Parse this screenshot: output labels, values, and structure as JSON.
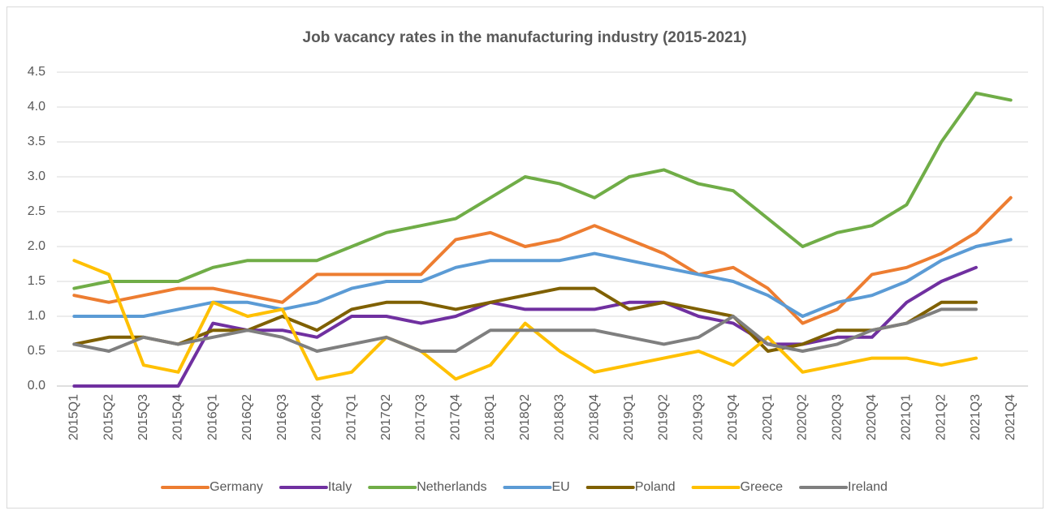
{
  "chart_data": {
    "type": "line",
    "title": "Job vacancy rates in the manufacturing industry (2015-2021)",
    "categories": [
      "2015Q1",
      "2015Q2",
      "2015Q3",
      "2015Q4",
      "2016Q1",
      "2016Q2",
      "2016Q3",
      "2016Q4",
      "2017Q1",
      "2017Q2",
      "2017Q3",
      "2017Q4",
      "2018Q1",
      "2018Q2",
      "2018Q3",
      "2018Q4",
      "2019Q1",
      "2019Q2",
      "2019Q3",
      "2019Q4",
      "2020Q1",
      "2020Q2",
      "2020Q3",
      "2020Q4",
      "2021Q1",
      "2021Q2",
      "2021Q3",
      "2021Q4"
    ],
    "series": [
      {
        "name": "Germany",
        "color": "#ed7d31",
        "values": [
          1.3,
          1.2,
          1.3,
          1.4,
          1.4,
          1.3,
          1.2,
          1.6,
          1.6,
          1.6,
          1.6,
          2.1,
          2.2,
          2.0,
          2.1,
          2.3,
          2.1,
          1.9,
          1.6,
          1.7,
          1.4,
          0.9,
          1.1,
          1.6,
          1.7,
          1.9,
          2.2,
          2.7
        ]
      },
      {
        "name": "Italy",
        "color": "#7030a0",
        "values": [
          0,
          0,
          0,
          0,
          0.9,
          0.8,
          0.8,
          0.7,
          1.0,
          1.0,
          0.9,
          1.0,
          1.2,
          1.1,
          1.1,
          1.1,
          1.2,
          1.2,
          1.0,
          0.9,
          0.6,
          0.6,
          0.7,
          0.7,
          1.2,
          1.5,
          1.7,
          null
        ]
      },
      {
        "name": "Netherlands",
        "color": "#70ad47",
        "values": [
          1.4,
          1.5,
          1.5,
          1.5,
          1.7,
          1.8,
          1.8,
          1.8,
          2.0,
          2.2,
          2.3,
          2.4,
          2.7,
          3.0,
          2.9,
          2.7,
          3.0,
          3.1,
          2.9,
          2.8,
          2.4,
          2.0,
          2.2,
          2.3,
          2.6,
          3.5,
          4.2,
          4.1
        ]
      },
      {
        "name": "EU",
        "color": "#5b9bd5",
        "values": [
          1.0,
          1.0,
          1.0,
          1.1,
          1.2,
          1.2,
          1.1,
          1.2,
          1.4,
          1.5,
          1.5,
          1.7,
          1.8,
          1.8,
          1.8,
          1.9,
          1.8,
          1.7,
          1.6,
          1.5,
          1.3,
          1.0,
          1.2,
          1.3,
          1.5,
          1.8,
          2.0,
          2.1
        ]
      },
      {
        "name": "Poland",
        "color": "#7f6000",
        "values": [
          0.6,
          0.7,
          0.7,
          0.6,
          0.8,
          0.8,
          1.0,
          0.8,
          1.1,
          1.2,
          1.2,
          1.1,
          1.2,
          1.3,
          1.4,
          1.4,
          1.1,
          1.2,
          1.1,
          1.0,
          0.5,
          0.6,
          0.8,
          0.8,
          0.9,
          1.2,
          1.2,
          null
        ]
      },
      {
        "name": "Greece",
        "color": "#ffc000",
        "values": [
          1.8,
          1.6,
          0.3,
          0.2,
          1.2,
          1.0,
          1.1,
          0.1,
          0.2,
          0.7,
          0.5,
          0.1,
          0.3,
          0.9,
          0.5,
          0.2,
          0.3,
          0.4,
          0.5,
          0.3,
          0.7,
          0.2,
          0.3,
          0.4,
          0.4,
          0.3,
          0.4,
          null
        ]
      },
      {
        "name": "Ireland",
        "color": "#7f7f7f",
        "values": [
          0.6,
          0.5,
          0.7,
          0.6,
          0.7,
          0.8,
          0.7,
          0.5,
          0.6,
          0.7,
          0.5,
          0.5,
          0.8,
          0.8,
          0.8,
          0.8,
          0.7,
          0.6,
          0.7,
          1.0,
          0.6,
          0.5,
          0.6,
          0.8,
          0.9,
          1.1,
          1.1,
          null
        ]
      }
    ],
    "ylim": [
      0,
      4.5
    ],
    "yticks": [
      {
        "value": 0,
        "label": "0.0"
      },
      0.5,
      {
        "value": 1,
        "label": "1.0"
      },
      1.5,
      {
        "value": 2,
        "label": "2.0"
      },
      2.5,
      {
        "value": 3,
        "label": "3.0"
      },
      3.5,
      {
        "value": 4,
        "label": "4.0"
      },
      4.5
    ],
    "grid": true,
    "legend": "bottom"
  }
}
